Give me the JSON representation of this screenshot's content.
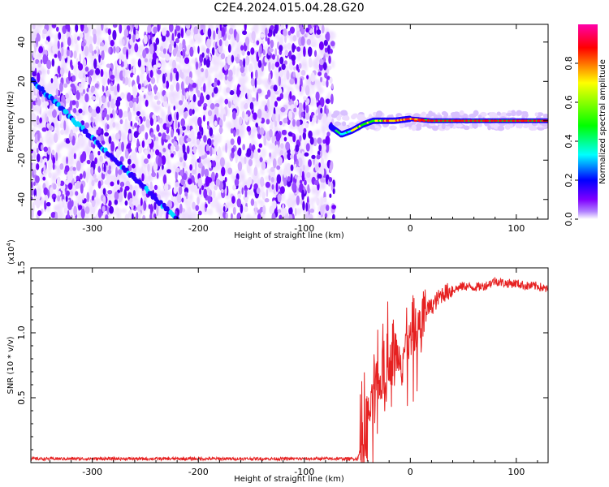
{
  "figure_title": "C2E4.2024.015.04.28.G20",
  "chart_data": [
    {
      "type": "heatmap",
      "xlabel": "Height of straight line (km)",
      "ylabel": "Frequency (Hz)",
      "xlim": [
        -358,
        130
      ],
      "ylim": [
        -50,
        49
      ],
      "xticks": [
        -300,
        -200,
        -100,
        0,
        100
      ],
      "xtick_labels": [
        "-300",
        "-200",
        "-100",
        "0",
        "100"
      ],
      "yticks": [
        -40,
        -20,
        0,
        20,
        40
      ],
      "ytick_labels": [
        "-40",
        "-20",
        "0",
        "20",
        "40"
      ],
      "colorbar": {
        "label": "Normalized spectral amplitude",
        "range": [
          0,
          1
        ],
        "ticks": [
          0,
          0.2,
          0.4,
          0.6,
          0.8
        ],
        "tick_labels": [
          "0.0",
          "0.2",
          "0.4",
          "0.6",
          "0.8"
        ],
        "colormap": [
          "#ffffff",
          "#8000ff",
          "#0000ff",
          "#00ffff",
          "#00ff00",
          "#ffff00",
          "#ff0000",
          "#ff00aa"
        ]
      },
      "noise_region_x": [
        -358,
        -72
      ],
      "diagonal_trace": {
        "x": [
          -358,
          -220
        ],
        "freq": [
          21,
          -50
        ]
      },
      "carrier_trace": {
        "x": [
          -75,
          -65,
          -55,
          -45,
          -35,
          -25,
          -15,
          0,
          20,
          50,
          130
        ],
        "freq": [
          -3,
          -7,
          -5,
          -2,
          0,
          0,
          0,
          1,
          0,
          0,
          0
        ]
      }
    },
    {
      "type": "line",
      "xlabel": "Height of straight line (km)",
      "ylabel": "SNR (10 * v/v)",
      "y_multiplier_label": "(x10",
      "y_multiplier_exp": "4",
      "xlim": [
        -358,
        130
      ],
      "ylim": [
        0,
        1.5
      ],
      "xticks": [
        -300,
        -200,
        -100,
        0,
        100
      ],
      "xtick_labels": [
        "-300",
        "-200",
        "-100",
        "0",
        "100"
      ],
      "yticks": [
        0.5,
        1.0,
        1.5
      ],
      "ytick_labels": [
        "0.5",
        "1.0",
        "1.5"
      ],
      "color": "#e62020",
      "series": [
        {
          "x": [
            -358,
            -300,
            -250,
            -200,
            -150,
            -100,
            -60,
            -50,
            -45,
            -40,
            -35,
            -30,
            -25,
            -20,
            -15,
            -10,
            -5,
            0,
            5,
            10,
            15,
            20,
            25,
            30,
            40,
            50,
            60,
            70,
            80,
            90,
            100,
            110,
            120,
            130
          ],
          "values": [
            0.03,
            0.03,
            0.03,
            0.03,
            0.03,
            0.03,
            0.03,
            0.03,
            0.12,
            0.35,
            0.45,
            0.6,
            0.65,
            0.75,
            0.85,
            0.82,
            0.88,
            0.93,
            1.02,
            1.05,
            1.18,
            1.2,
            1.25,
            1.3,
            1.33,
            1.36,
            1.35,
            1.36,
            1.4,
            1.38,
            1.38,
            1.36,
            1.36,
            1.33
          ]
        }
      ]
    }
  ]
}
